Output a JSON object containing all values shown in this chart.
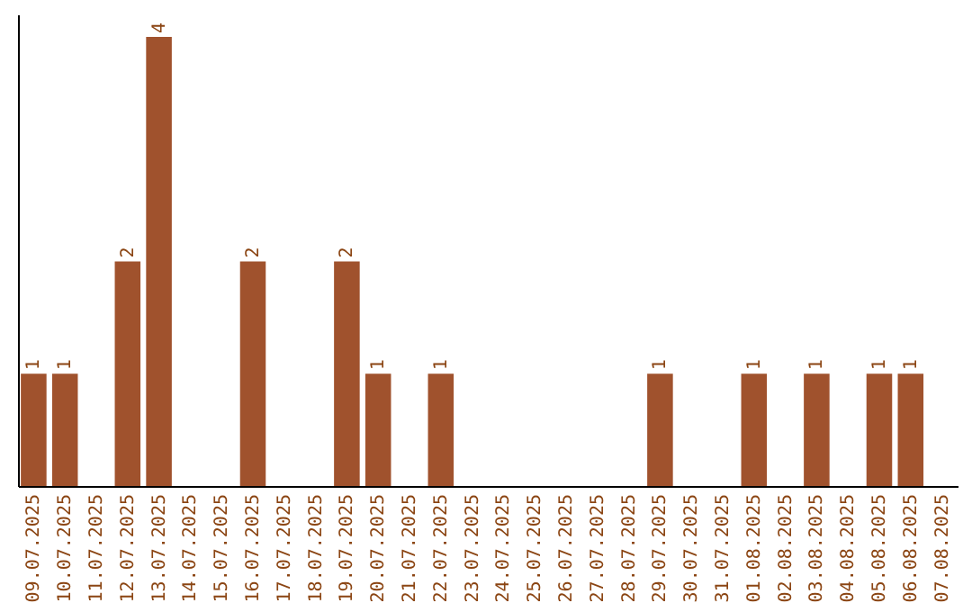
{
  "chart_data": {
    "type": "bar",
    "categories": [
      "09.07.2025",
      "10.07.2025",
      "11.07.2025",
      "12.07.2025",
      "13.07.2025",
      "14.07.2025",
      "15.07.2025",
      "16.07.2025",
      "17.07.2025",
      "18.07.2025",
      "19.07.2025",
      "20.07.2025",
      "21.07.2025",
      "22.07.2025",
      "23.07.2025",
      "24.07.2025",
      "25.07.2025",
      "26.07.2025",
      "27.07.2025",
      "28.07.2025",
      "29.07.2025",
      "30.07.2025",
      "31.07.2025",
      "01.08.2025",
      "02.08.2025",
      "03.08.2025",
      "04.08.2025",
      "05.08.2025",
      "06.08.2025",
      "07.08.2025"
    ],
    "values": [
      1,
      1,
      0,
      2,
      4,
      0,
      0,
      2,
      0,
      0,
      2,
      1,
      0,
      1,
      0,
      0,
      0,
      0,
      0,
      0,
      1,
      0,
      0,
      1,
      0,
      1,
      0,
      1,
      1,
      0
    ],
    "value_labels": [
      "1",
      "1",
      null,
      "2",
      "4",
      null,
      null,
      "2",
      null,
      null,
      "2",
      "1",
      null,
      "1",
      null,
      null,
      null,
      null,
      null,
      null,
      "1",
      null,
      null,
      "1",
      null,
      "1",
      null,
      "1",
      "1",
      null
    ],
    "color": "#a0522d",
    "ylim": [
      0,
      4.2
    ],
    "tick_labels": "x",
    "grid": false
  }
}
